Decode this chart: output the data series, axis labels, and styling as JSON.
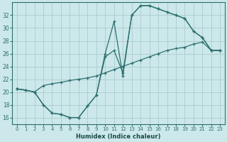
{
  "xlabel": "Humidex (Indice chaleur)",
  "bg_color": "#cce8ea",
  "grid_color": "#aacccc",
  "line_color": "#2d7070",
  "xlim": [
    -0.5,
    23.5
  ],
  "ylim": [
    15,
    34
  ],
  "yticks": [
    16,
    18,
    20,
    22,
    24,
    26,
    28,
    30,
    32
  ],
  "xticks": [
    0,
    1,
    2,
    3,
    4,
    5,
    6,
    7,
    8,
    9,
    10,
    11,
    12,
    13,
    14,
    15,
    16,
    17,
    18,
    19,
    20,
    21,
    22,
    23
  ],
  "line1_x": [
    0,
    1,
    2,
    3,
    4,
    5,
    6,
    7,
    8,
    9,
    10,
    11,
    12,
    13,
    14,
    15,
    16,
    17,
    18,
    19,
    20,
    21,
    22,
    23
  ],
  "line1_y": [
    20.5,
    20.3,
    20.0,
    18.0,
    16.7,
    16.5,
    16.0,
    16.0,
    17.8,
    19.5,
    26.0,
    31.0,
    22.5,
    32.0,
    33.5,
    33.5,
    33.0,
    32.5,
    32.0,
    31.5,
    29.5,
    28.5,
    26.5,
    26.5
  ],
  "line2_x": [
    0,
    2,
    3,
    4,
    5,
    6,
    7,
    8,
    9,
    10,
    11,
    12,
    13,
    14,
    15,
    16,
    17,
    18,
    19,
    20,
    21,
    22,
    23
  ],
  "line2_y": [
    20.5,
    20.0,
    21.0,
    21.3,
    21.5,
    21.8,
    22.0,
    22.2,
    22.5,
    23.0,
    23.5,
    24.0,
    24.5,
    25.0,
    25.5,
    26.0,
    26.5,
    26.8,
    27.0,
    27.5,
    27.8,
    26.5,
    26.5
  ],
  "line3_x": [
    0,
    1,
    2,
    3,
    4,
    5,
    6,
    7,
    8,
    9,
    10,
    11,
    12,
    13,
    14,
    15,
    16,
    17,
    18,
    19,
    20,
    21,
    22,
    23
  ],
  "line3_y": [
    20.5,
    20.3,
    20.0,
    18.0,
    16.7,
    16.5,
    16.0,
    16.0,
    17.8,
    19.5,
    25.5,
    26.5,
    23.0,
    32.0,
    33.5,
    33.5,
    33.0,
    32.5,
    32.0,
    31.5,
    29.5,
    28.5,
    26.5,
    26.5
  ]
}
